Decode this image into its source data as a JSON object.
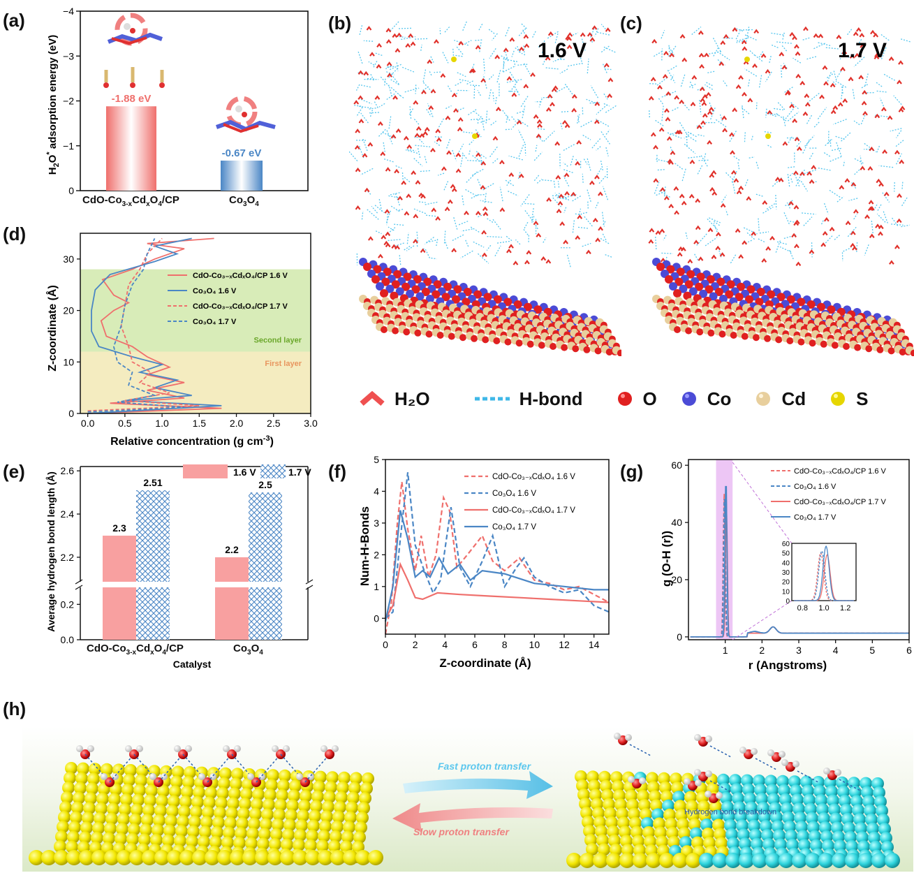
{
  "panel_letters": {
    "a": "(a)",
    "b": "(b)",
    "c": "(c)",
    "d": "(d)",
    "e": "(e)",
    "f": "(f)",
    "g": "(g)",
    "h": "(h)"
  },
  "colors": {
    "red": "#ef6f6c",
    "blue": "#4a86c5",
    "o_red": "#e02020",
    "co_blue": "#4b4bd6",
    "cd_tan": "#e8cf9d",
    "s_yellow": "#e6d600",
    "hbond": "#3fb8e8",
    "yellow_slab": "#f2e600",
    "cyan_slab": "#2fd4dd"
  },
  "chart_data": [
    {
      "id": "a",
      "type": "bar",
      "categories": [
        "CdO-Co3-xCdxO4/CP",
        "Co3O4"
      ],
      "values": [
        -1.88,
        -0.67
      ],
      "ylabel": "H2O* adsorption energy (eV)",
      "ylim": [
        0,
        -4
      ],
      "ytick_labels": [
        "0",
        "−1",
        "−2",
        "−3",
        "−4"
      ],
      "data_labels": [
        "-1.88 eV",
        "-0.67 eV"
      ],
      "bar_colors": [
        "#ef6f6c",
        "#4a86c5"
      ]
    },
    {
      "id": "d",
      "type": "line",
      "xlabel": "Relative concentration (g cm⁻³)",
      "ylabel": "Z-coordinate (Å)",
      "xlim": [
        -0.1,
        3.0
      ],
      "ylim": [
        0,
        35
      ],
      "xtick_labels": [
        "0.0",
        "0.5",
        "1.0",
        "1.5",
        "2.0",
        "2.5",
        "3.0"
      ],
      "ytick_labels": [
        "0",
        "10",
        "20",
        "30"
      ],
      "regions": [
        {
          "label": "Second layer",
          "y": [
            12,
            28
          ],
          "color": "#d8ecb8"
        },
        {
          "label": "First layer",
          "y": [
            0,
            12
          ],
          "color": "#f4ecc0"
        }
      ],
      "series": [
        {
          "name": "CdO-Co3-xCdxO4/CP 1.6 V",
          "style": "solid",
          "color": "#ef6f6c",
          "points": [
            [
              0,
              0
            ],
            [
              1.8,
              1
            ],
            [
              0.3,
              2
            ],
            [
              1.3,
              3
            ],
            [
              0.8,
              4.5
            ],
            [
              1.3,
              6
            ],
            [
              0.8,
              7.5
            ],
            [
              1.1,
              9
            ],
            [
              0.8,
              11
            ],
            [
              0.6,
              13
            ],
            [
              0.25,
              15
            ],
            [
              0.18,
              18
            ],
            [
              0.35,
              20
            ],
            [
              0.55,
              21.5
            ],
            [
              0.35,
              23
            ],
            [
              0.2,
              26
            ],
            [
              0.6,
              28
            ],
            [
              0.9,
              30
            ],
            [
              1.3,
              32
            ],
            [
              0.8,
              33
            ],
            [
              1.7,
              34
            ]
          ]
        },
        {
          "name": "Co3O4 1.6 V",
          "style": "solid",
          "color": "#4a86c5",
          "points": [
            [
              0,
              0
            ],
            [
              1.8,
              1.5
            ],
            [
              0.5,
              2.5
            ],
            [
              1.4,
              3.5
            ],
            [
              0.9,
              5
            ],
            [
              1.2,
              6.5
            ],
            [
              0.7,
              8
            ],
            [
              1.0,
              9.5
            ],
            [
              0.6,
              11
            ],
            [
              0.15,
              13
            ],
            [
              0.05,
              16
            ],
            [
              0.05,
              20
            ],
            [
              0.1,
              24
            ],
            [
              0.3,
              27
            ],
            [
              0.9,
              29.5
            ],
            [
              1.2,
              31
            ],
            [
              0.9,
              32.5
            ],
            [
              1.4,
              34
            ]
          ]
        },
        {
          "name": "CdO-Co3-xCdxO4/CP 1.7 V",
          "style": "dashed",
          "color": "#ef6f6c",
          "points": [
            [
              0,
              0.5
            ],
            [
              1.5,
              1.5
            ],
            [
              0.5,
              2.5
            ],
            [
              1.1,
              4
            ],
            [
              0.7,
              6
            ],
            [
              0.85,
              8
            ],
            [
              0.6,
              10
            ],
            [
              0.55,
              13
            ],
            [
              0.45,
              17
            ],
            [
              0.5,
              21
            ],
            [
              0.55,
              25
            ],
            [
              0.7,
              28
            ],
            [
              0.8,
              31
            ],
            [
              1.0,
              34
            ]
          ]
        },
        {
          "name": "Co3O4 1.7 V",
          "style": "dashed",
          "color": "#4a86c5",
          "points": [
            [
              0,
              0.3
            ],
            [
              1.3,
              1.2
            ],
            [
              0.4,
              2.2
            ],
            [
              0.9,
              3.5
            ],
            [
              0.55,
              5.5
            ],
            [
              0.6,
              8
            ],
            [
              0.4,
              10
            ],
            [
              0.35,
              13
            ],
            [
              0.45,
              17
            ],
            [
              0.5,
              21
            ],
            [
              0.6,
              25
            ],
            [
              0.75,
              28
            ],
            [
              0.8,
              31
            ],
            [
              0.9,
              34
            ]
          ]
        }
      ]
    },
    {
      "id": "e",
      "type": "bar",
      "xlabel": "Catalyst",
      "ylabel": "Average hydrogen bond length (Å)",
      "categories": [
        "CdO-Co3-xCdxO4/CP",
        "Co3O4"
      ],
      "series": [
        {
          "name": "1.6 V",
          "values": [
            2.3,
            2.2
          ],
          "pattern": "solid"
        },
        {
          "name": "1.7 V",
          "values": [
            2.51,
            2.5
          ],
          "pattern": "crosshatch"
        }
      ],
      "data_labels": [
        "2.3",
        "2.51",
        "2.2",
        "2.5"
      ],
      "ytick_labels": [
        "0.0",
        "0.2",
        "2.2",
        "2.4",
        "2.6"
      ],
      "axis_break": true
    },
    {
      "id": "f",
      "type": "line",
      "xlabel": "Z-coordinate (Å)",
      "ylabel": "Num-H-Bonds",
      "xlim": [
        0,
        15
      ],
      "ylim": [
        -0.5,
        5
      ],
      "xtick_labels": [
        "0",
        "2",
        "4",
        "6",
        "8",
        "10",
        "12",
        "14"
      ],
      "ytick_labels": [
        "0",
        "1",
        "2",
        "3",
        "4",
        "5"
      ],
      "series": [
        {
          "name": "CdO-Co3-xCdxO4 1.6 V",
          "style": "dashed",
          "color": "#ef6f6c",
          "points": [
            [
              0,
              -0.5
            ],
            [
              0.4,
              0.5
            ],
            [
              0.8,
              3
            ],
            [
              1.1,
              4.3
            ],
            [
              1.5,
              2.8
            ],
            [
              2.0,
              1.5
            ],
            [
              2.4,
              2.6
            ],
            [
              2.9,
              1.3
            ],
            [
              3.4,
              2
            ],
            [
              3.9,
              3.8
            ],
            [
              4.3,
              3.4
            ],
            [
              4.8,
              1.6
            ],
            [
              5.5,
              2
            ],
            [
              6.5,
              2.6
            ],
            [
              7.2,
              1.8
            ],
            [
              8,
              1.5
            ],
            [
              9,
              1.9
            ],
            [
              10,
              1.2
            ],
            [
              11,
              1.1
            ],
            [
              12,
              0.9
            ],
            [
              13,
              1
            ],
            [
              15,
              0.5
            ]
          ]
        },
        {
          "name": "Co3O4 1.6 V",
          "style": "dashed",
          "color": "#4a86c5",
          "points": [
            [
              0,
              0
            ],
            [
              0.5,
              0.2
            ],
            [
              1.0,
              2.5
            ],
            [
              1.5,
              4.6
            ],
            [
              2.0,
              2.3
            ],
            [
              2.6,
              1.5
            ],
            [
              3.2,
              0.8
            ],
            [
              3.7,
              1.2
            ],
            [
              4.4,
              3.5
            ],
            [
              5.0,
              1.6
            ],
            [
              5.7,
              1.0
            ],
            [
              6.5,
              1.8
            ],
            [
              7.2,
              2.6
            ],
            [
              8,
              1.0
            ],
            [
              8.8,
              1.6
            ],
            [
              9.3,
              1.9
            ],
            [
              10,
              1.3
            ],
            [
              11,
              1.0
            ],
            [
              12,
              0.8
            ],
            [
              13,
              0.9
            ],
            [
              14,
              0.4
            ],
            [
              15,
              0.2
            ]
          ]
        },
        {
          "name": "CdO-Co3-xCdxO4 1.7 V",
          "style": "solid",
          "color": "#ef6f6c",
          "points": [
            [
              0,
              0
            ],
            [
              0.5,
              0.4
            ],
            [
              1.0,
              1.7
            ],
            [
              1.5,
              1.2
            ],
            [
              2.0,
              0.65
            ],
            [
              2.5,
              0.6
            ],
            [
              3.5,
              0.8
            ],
            [
              5,
              0.75
            ],
            [
              7,
              0.7
            ],
            [
              9,
              0.65
            ],
            [
              11,
              0.6
            ],
            [
              13,
              0.55
            ],
            [
              15,
              0.5
            ]
          ]
        },
        {
          "name": "Co3O4 1.7 V",
          "style": "solid",
          "color": "#4a86c5",
          "points": [
            [
              0,
              -0.1
            ],
            [
              0.5,
              1.0
            ],
            [
              1.0,
              3.4
            ],
            [
              1.5,
              2.5
            ],
            [
              2.0,
              1.3
            ],
            [
              2.5,
              1.5
            ],
            [
              3.0,
              1.3
            ],
            [
              3.6,
              1.9
            ],
            [
              4.2,
              1.4
            ],
            [
              5,
              1.7
            ],
            [
              5.7,
              1.2
            ],
            [
              6.5,
              1.5
            ],
            [
              8,
              1.4
            ],
            [
              10,
              1.1
            ],
            [
              12,
              1.0
            ],
            [
              14,
              0.9
            ],
            [
              15,
              0.9
            ]
          ]
        }
      ]
    },
    {
      "id": "g",
      "type": "line",
      "xlabel": "r (Angstroms)",
      "ylabel": "g (O-H (r))",
      "xlim": [
        0,
        6
      ],
      "ylim": [
        -1,
        62
      ],
      "xtick_labels": [
        "1",
        "2",
        "3",
        "4",
        "5",
        "6"
      ],
      "ytick_labels": [
        "0",
        "20",
        "40",
        "60"
      ],
      "highlight_range": [
        0.75,
        1.2
      ],
      "series": [
        {
          "name": "CdO-Co3-xCdxO4/CP 1.6 V",
          "style": "dashed",
          "color": "#ef6f6c",
          "peak": [
            0.97,
            50
          ]
        },
        {
          "name": "Co3O4 1.6 V",
          "style": "dashed",
          "color": "#4a86c5",
          "peak": [
            0.98,
            52
          ]
        },
        {
          "name": "CdO-Co3-xCdxO4/CP 1.7 V",
          "style": "solid",
          "color": "#ef6f6c",
          "peak": [
            1.03,
            48
          ]
        },
        {
          "name": "Co3O4 1.7 V",
          "style": "solid",
          "color": "#4a86c5",
          "peak": [
            1.02,
            57
          ]
        }
      ],
      "inset": {
        "xlim": [
          0.7,
          1.3
        ],
        "ylim": [
          0,
          60
        ],
        "xtick_labels": [
          "0.8",
          "1.0",
          "1.2"
        ],
        "ytick_labels": [
          "0",
          "10",
          "20",
          "30",
          "40",
          "50",
          "60"
        ]
      }
    }
  ],
  "panel_b": {
    "voltage": "1.6 V"
  },
  "panel_c": {
    "voltage": "1.7 V"
  },
  "legend_bc": {
    "h2o": "H₂O",
    "hbond": "H-bond",
    "o": "O",
    "co": "Co",
    "cd": "Cd",
    "s": "S"
  },
  "panel_h": {
    "fast": "Fast proton transfer",
    "slow": "Slow proton transfer",
    "breakdown": "Hydrogen bond breakdown"
  }
}
